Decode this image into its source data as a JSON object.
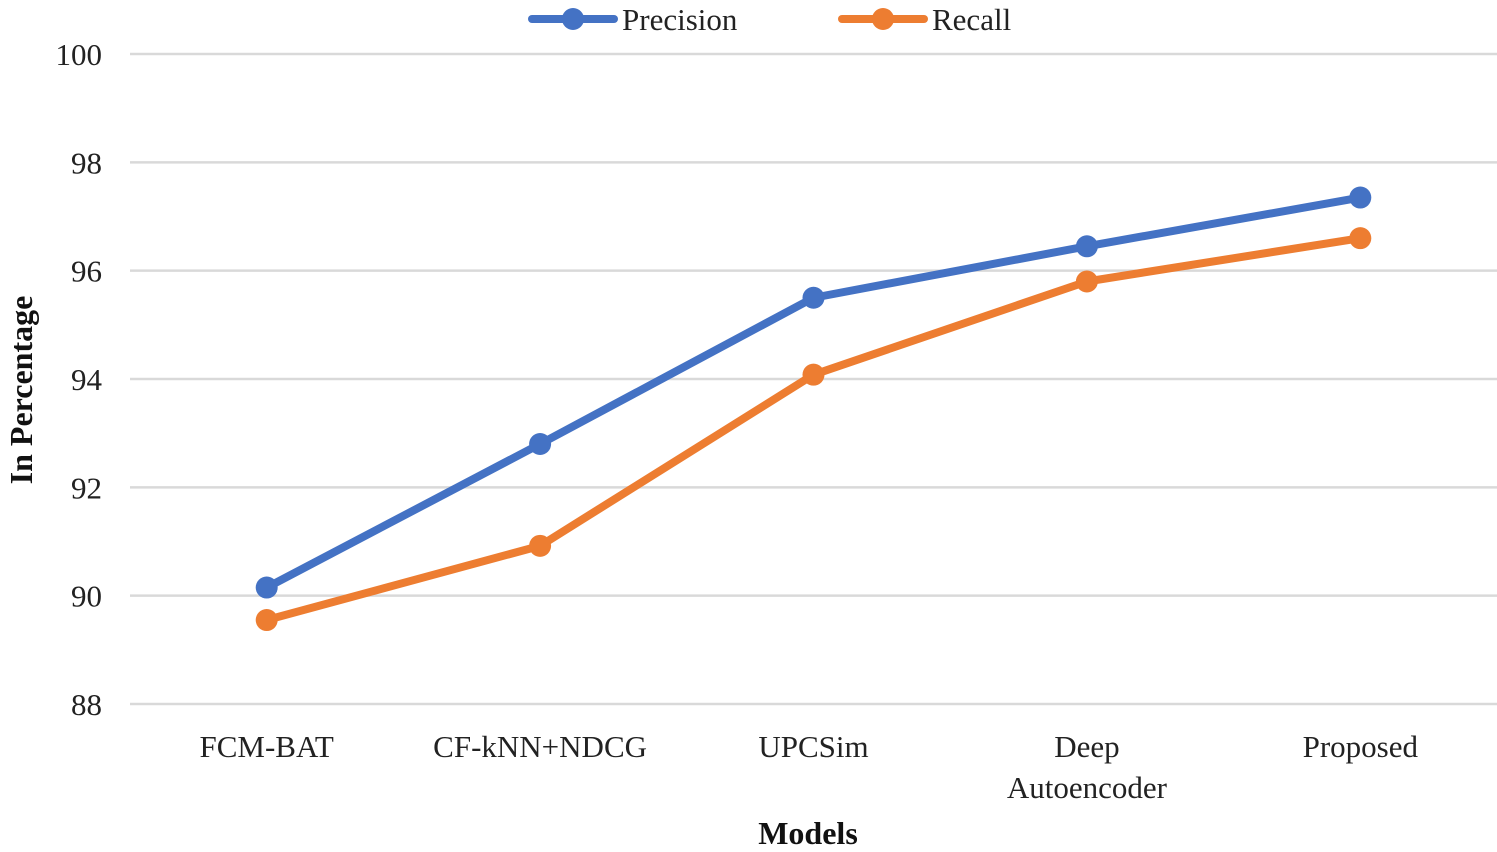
{
  "chart_data": {
    "type": "line",
    "title": "",
    "xlabel": "Models",
    "ylabel": "In Percentage",
    "categories": [
      [
        "FCM-BAT"
      ],
      [
        "CF-kNN+NDCG"
      ],
      [
        "UPCSim"
      ],
      [
        "Deep",
        "Autoencoder"
      ],
      [
        "Proposed"
      ]
    ],
    "ylim": [
      88,
      100
    ],
    "yticks": [
      88,
      90,
      92,
      94,
      96,
      98,
      100
    ],
    "grid": true,
    "legend_position": "top-center",
    "series": [
      {
        "name": "Precision",
        "color": "#4472c4",
        "values": [
          90.15,
          92.8,
          95.5,
          96.45,
          97.35
        ]
      },
      {
        "name": "Recall",
        "color": "#ed7d31",
        "values": [
          89.55,
          90.92,
          94.08,
          95.8,
          96.6
        ]
      }
    ]
  }
}
